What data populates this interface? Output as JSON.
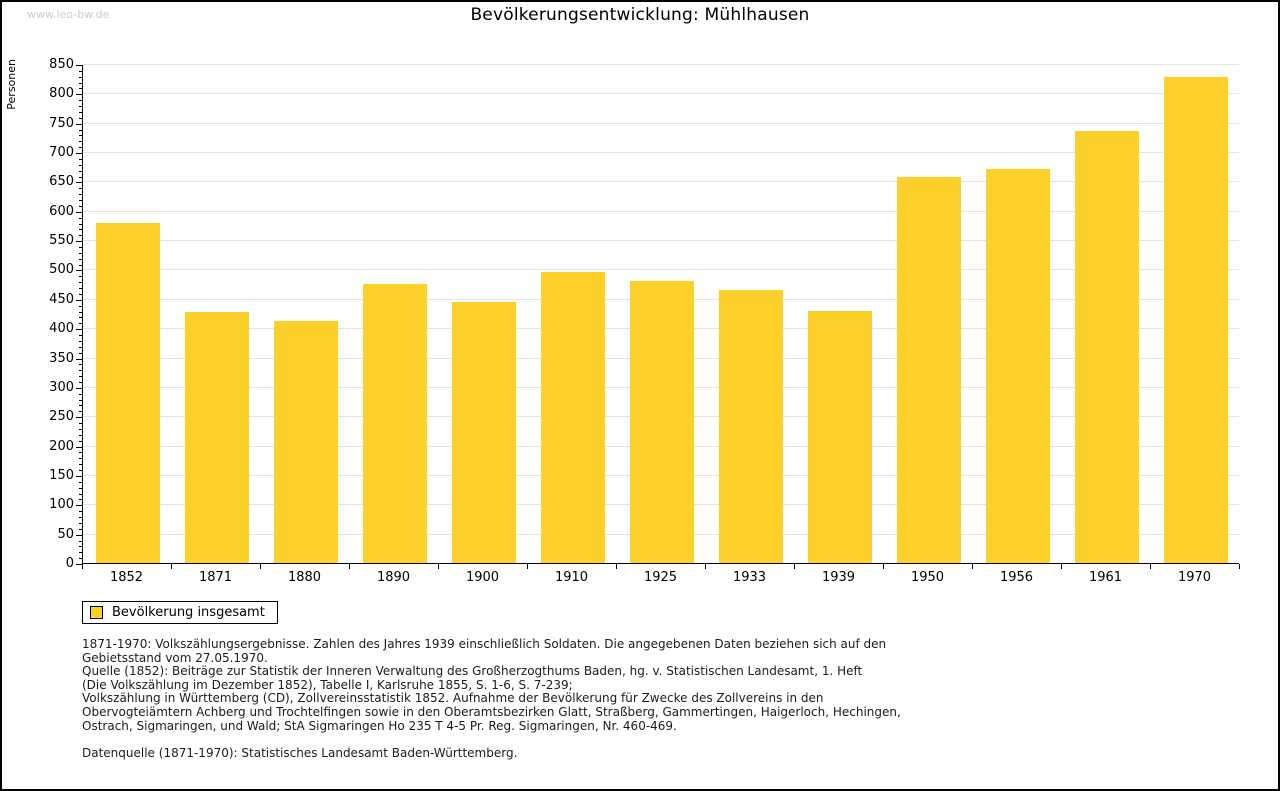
{
  "page": {
    "watermark": "www.leo-bw.de",
    "title": "Bevölkerungsentwicklung: Mühlhausen"
  },
  "chart_data": {
    "type": "bar",
    "title": "Bevölkerungsentwicklung: Mühlhausen",
    "ylabel": "Personen",
    "xlabel": "",
    "categories": [
      "1852",
      "1871",
      "1880",
      "1890",
      "1900",
      "1910",
      "1925",
      "1933",
      "1939",
      "1950",
      "1956",
      "1961",
      "1970"
    ],
    "values": [
      580,
      427,
      412,
      475,
      445,
      496,
      480,
      465,
      430,
      657,
      671,
      736,
      828
    ],
    "series_name": "Bevölkerung insgesamt",
    "ylim": [
      0,
      850
    ],
    "ytick_step": 50,
    "yminor_step": 10,
    "grid": true,
    "legend_position": "bottom-left",
    "bar_color": "#FCD12B"
  },
  "legend": {
    "label": "Bevölkerung insgesamt"
  },
  "footnotes": {
    "lines": [
      "1871-1970: Volkszählungsergebnisse. Zahlen des Jahres 1939 einschließlich Soldaten. Die angegebenen Daten beziehen sich auf den",
      "Gebietsstand vom 27.05.1970.",
      "Quelle (1852): Beiträge zur Statistik der Inneren Verwaltung des Großherzogthums Baden, hg. v. Statistischen Landesamt, 1. Heft",
      "(Die Volkszählung im Dezember 1852), Tabelle I, Karlsruhe 1855, S. 1-6, S. 7-239;",
      "Volkszählung in Württemberg (CD), Zollvereinsstatistik 1852. Aufnahme der Bevölkerung für Zwecke des Zollvereins in den",
      "Obervogteiämtern Achberg und Trochtelfingen sowie in den Oberamtsbezirken Glatt, Straßberg, Gammertingen, Haigerloch, Hechingen,",
      "Ostrach, Sigmaringen, und Wald; StA Sigmaringen Ho 235 T 4-5 Pr. Reg. Sigmaringen, Nr. 460-469."
    ],
    "datasource": "Datenquelle (1871-1970): Statistisches Landesamt Baden-Württemberg."
  },
  "colors": {
    "bar": "#FCD12B",
    "grid": "#e3e3e3",
    "axis": "#000000",
    "watermark": "#cbcbcb"
  }
}
